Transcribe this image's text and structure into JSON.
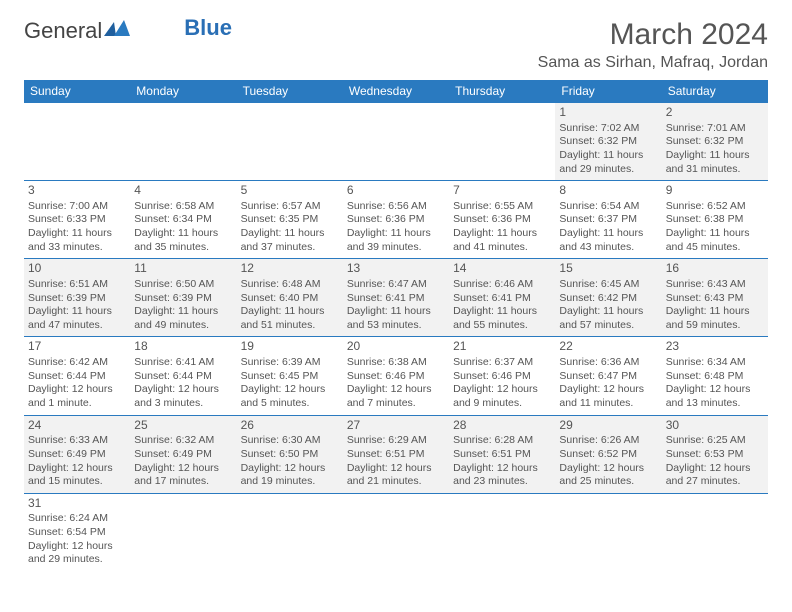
{
  "logo": {
    "text1": "General",
    "text2": "Blue"
  },
  "title": "March 2024",
  "location": "Sama as Sirhan, Mafraq, Jordan",
  "colors": {
    "header_bg": "#2a7ac0",
    "row_alt_bg": "#f2f2f2",
    "border": "#2a7ac0",
    "text": "#555555"
  },
  "weekdays": [
    "Sunday",
    "Monday",
    "Tuesday",
    "Wednesday",
    "Thursday",
    "Friday",
    "Saturday"
  ],
  "weeks": [
    [
      null,
      null,
      null,
      null,
      null,
      {
        "d": "1",
        "sr": "Sunrise: 7:02 AM",
        "ss": "Sunset: 6:32 PM",
        "dl1": "Daylight: 11 hours",
        "dl2": "and 29 minutes."
      },
      {
        "d": "2",
        "sr": "Sunrise: 7:01 AM",
        "ss": "Sunset: 6:32 PM",
        "dl1": "Daylight: 11 hours",
        "dl2": "and 31 minutes."
      }
    ],
    [
      {
        "d": "3",
        "sr": "Sunrise: 7:00 AM",
        "ss": "Sunset: 6:33 PM",
        "dl1": "Daylight: 11 hours",
        "dl2": "and 33 minutes."
      },
      {
        "d": "4",
        "sr": "Sunrise: 6:58 AM",
        "ss": "Sunset: 6:34 PM",
        "dl1": "Daylight: 11 hours",
        "dl2": "and 35 minutes."
      },
      {
        "d": "5",
        "sr": "Sunrise: 6:57 AM",
        "ss": "Sunset: 6:35 PM",
        "dl1": "Daylight: 11 hours",
        "dl2": "and 37 minutes."
      },
      {
        "d": "6",
        "sr": "Sunrise: 6:56 AM",
        "ss": "Sunset: 6:36 PM",
        "dl1": "Daylight: 11 hours",
        "dl2": "and 39 minutes."
      },
      {
        "d": "7",
        "sr": "Sunrise: 6:55 AM",
        "ss": "Sunset: 6:36 PM",
        "dl1": "Daylight: 11 hours",
        "dl2": "and 41 minutes."
      },
      {
        "d": "8",
        "sr": "Sunrise: 6:54 AM",
        "ss": "Sunset: 6:37 PM",
        "dl1": "Daylight: 11 hours",
        "dl2": "and 43 minutes."
      },
      {
        "d": "9",
        "sr": "Sunrise: 6:52 AM",
        "ss": "Sunset: 6:38 PM",
        "dl1": "Daylight: 11 hours",
        "dl2": "and 45 minutes."
      }
    ],
    [
      {
        "d": "10",
        "sr": "Sunrise: 6:51 AM",
        "ss": "Sunset: 6:39 PM",
        "dl1": "Daylight: 11 hours",
        "dl2": "and 47 minutes."
      },
      {
        "d": "11",
        "sr": "Sunrise: 6:50 AM",
        "ss": "Sunset: 6:39 PM",
        "dl1": "Daylight: 11 hours",
        "dl2": "and 49 minutes."
      },
      {
        "d": "12",
        "sr": "Sunrise: 6:48 AM",
        "ss": "Sunset: 6:40 PM",
        "dl1": "Daylight: 11 hours",
        "dl2": "and 51 minutes."
      },
      {
        "d": "13",
        "sr": "Sunrise: 6:47 AM",
        "ss": "Sunset: 6:41 PM",
        "dl1": "Daylight: 11 hours",
        "dl2": "and 53 minutes."
      },
      {
        "d": "14",
        "sr": "Sunrise: 6:46 AM",
        "ss": "Sunset: 6:41 PM",
        "dl1": "Daylight: 11 hours",
        "dl2": "and 55 minutes."
      },
      {
        "d": "15",
        "sr": "Sunrise: 6:45 AM",
        "ss": "Sunset: 6:42 PM",
        "dl1": "Daylight: 11 hours",
        "dl2": "and 57 minutes."
      },
      {
        "d": "16",
        "sr": "Sunrise: 6:43 AM",
        "ss": "Sunset: 6:43 PM",
        "dl1": "Daylight: 11 hours",
        "dl2": "and 59 minutes."
      }
    ],
    [
      {
        "d": "17",
        "sr": "Sunrise: 6:42 AM",
        "ss": "Sunset: 6:44 PM",
        "dl1": "Daylight: 12 hours",
        "dl2": "and 1 minute."
      },
      {
        "d": "18",
        "sr": "Sunrise: 6:41 AM",
        "ss": "Sunset: 6:44 PM",
        "dl1": "Daylight: 12 hours",
        "dl2": "and 3 minutes."
      },
      {
        "d": "19",
        "sr": "Sunrise: 6:39 AM",
        "ss": "Sunset: 6:45 PM",
        "dl1": "Daylight: 12 hours",
        "dl2": "and 5 minutes."
      },
      {
        "d": "20",
        "sr": "Sunrise: 6:38 AM",
        "ss": "Sunset: 6:46 PM",
        "dl1": "Daylight: 12 hours",
        "dl2": "and 7 minutes."
      },
      {
        "d": "21",
        "sr": "Sunrise: 6:37 AM",
        "ss": "Sunset: 6:46 PM",
        "dl1": "Daylight: 12 hours",
        "dl2": "and 9 minutes."
      },
      {
        "d": "22",
        "sr": "Sunrise: 6:36 AM",
        "ss": "Sunset: 6:47 PM",
        "dl1": "Daylight: 12 hours",
        "dl2": "and 11 minutes."
      },
      {
        "d": "23",
        "sr": "Sunrise: 6:34 AM",
        "ss": "Sunset: 6:48 PM",
        "dl1": "Daylight: 12 hours",
        "dl2": "and 13 minutes."
      }
    ],
    [
      {
        "d": "24",
        "sr": "Sunrise: 6:33 AM",
        "ss": "Sunset: 6:49 PM",
        "dl1": "Daylight: 12 hours",
        "dl2": "and 15 minutes."
      },
      {
        "d": "25",
        "sr": "Sunrise: 6:32 AM",
        "ss": "Sunset: 6:49 PM",
        "dl1": "Daylight: 12 hours",
        "dl2": "and 17 minutes."
      },
      {
        "d": "26",
        "sr": "Sunrise: 6:30 AM",
        "ss": "Sunset: 6:50 PM",
        "dl1": "Daylight: 12 hours",
        "dl2": "and 19 minutes."
      },
      {
        "d": "27",
        "sr": "Sunrise: 6:29 AM",
        "ss": "Sunset: 6:51 PM",
        "dl1": "Daylight: 12 hours",
        "dl2": "and 21 minutes."
      },
      {
        "d": "28",
        "sr": "Sunrise: 6:28 AM",
        "ss": "Sunset: 6:51 PM",
        "dl1": "Daylight: 12 hours",
        "dl2": "and 23 minutes."
      },
      {
        "d": "29",
        "sr": "Sunrise: 6:26 AM",
        "ss": "Sunset: 6:52 PM",
        "dl1": "Daylight: 12 hours",
        "dl2": "and 25 minutes."
      },
      {
        "d": "30",
        "sr": "Sunrise: 6:25 AM",
        "ss": "Sunset: 6:53 PM",
        "dl1": "Daylight: 12 hours",
        "dl2": "and 27 minutes."
      }
    ],
    [
      {
        "d": "31",
        "sr": "Sunrise: 6:24 AM",
        "ss": "Sunset: 6:54 PM",
        "dl1": "Daylight: 12 hours",
        "dl2": "and 29 minutes."
      },
      null,
      null,
      null,
      null,
      null,
      null
    ]
  ]
}
